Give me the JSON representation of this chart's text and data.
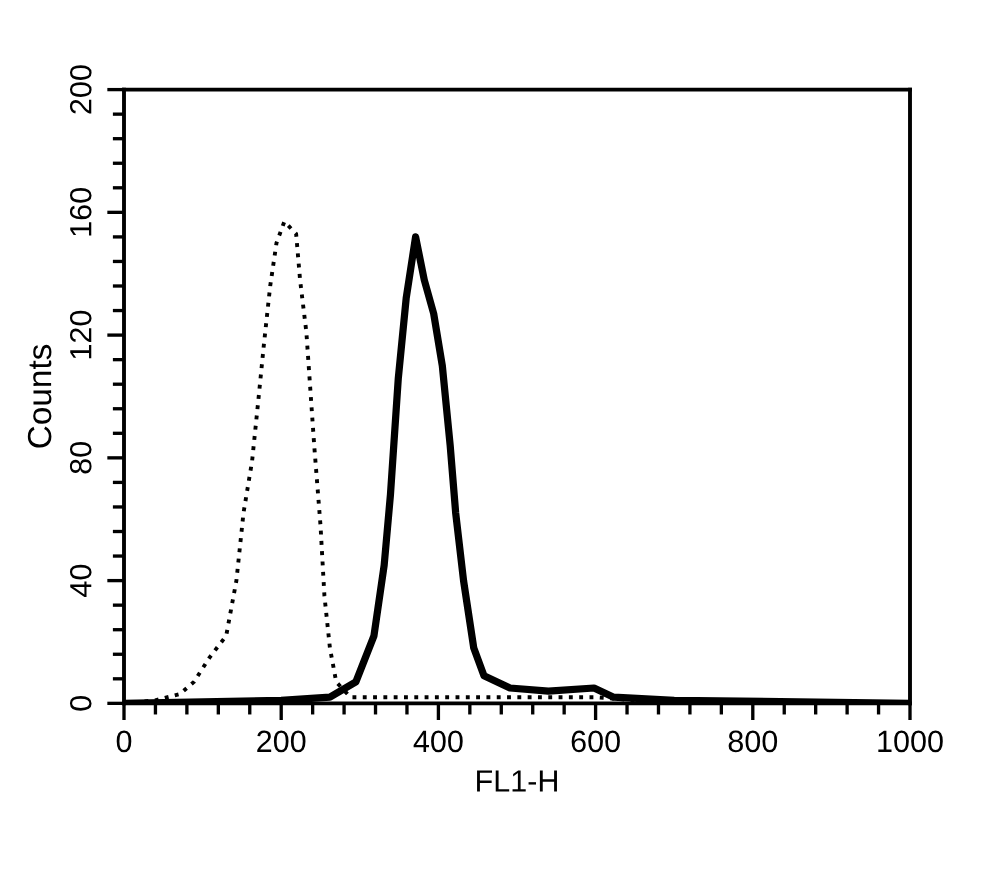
{
  "chart_data": {
    "type": "line",
    "xlabel": "FL1-H",
    "ylabel": "Counts",
    "xlim": [
      0,
      1000
    ],
    "ylim": [
      0,
      200
    ],
    "xticks": [
      0,
      {
        "value": 40,
        "label": null
      },
      {
        "value": 80,
        "label": null
      },
      {
        "value": 120,
        "label": null
      },
      {
        "value": 160,
        "label": null
      },
      200,
      {
        "value": 240,
        "label": null
      },
      {
        "value": 280,
        "label": null
      },
      {
        "value": 320,
        "label": null
      },
      {
        "value": 360,
        "label": null
      },
      400,
      {
        "value": 440,
        "label": null
      },
      {
        "value": 480,
        "label": null
      },
      {
        "value": 520,
        "label": null
      },
      {
        "value": 560,
        "label": null
      },
      600,
      {
        "value": 640,
        "label": null
      },
      {
        "value": 680,
        "label": null
      },
      {
        "value": 720,
        "label": null
      },
      {
        "value": 760,
        "label": null
      },
      800,
      {
        "value": 840,
        "label": null
      },
      {
        "value": 880,
        "label": null
      },
      {
        "value": 920,
        "label": null
      },
      {
        "value": 960,
        "label": null
      },
      1000
    ],
    "yticks": [
      0,
      {
        "value": 8,
        "label": null
      },
      {
        "value": 16,
        "label": null
      },
      {
        "value": 24,
        "label": null
      },
      {
        "value": 32,
        "label": null
      },
      40,
      {
        "value": 48,
        "label": null
      },
      {
        "value": 56,
        "label": null
      },
      {
        "value": 64,
        "label": null
      },
      {
        "value": 72,
        "label": null
      },
      80,
      {
        "value": 88,
        "label": null
      },
      {
        "value": 96,
        "label": null
      },
      {
        "value": 104,
        "label": null
      },
      {
        "value": 112,
        "label": null
      },
      120,
      {
        "value": 128,
        "label": null
      },
      {
        "value": 136,
        "label": null
      },
      {
        "value": 144,
        "label": null
      },
      {
        "value": 152,
        "label": null
      },
      160,
      {
        "value": 168,
        "label": null
      },
      {
        "value": 176,
        "label": null
      },
      {
        "value": 184,
        "label": null
      },
      {
        "value": 192,
        "label": null
      },
      200
    ],
    "grid": false,
    "legend": false,
    "marker": "none",
    "series": [
      {
        "color": "#000000",
        "line_style": "dotted",
        "x": [
          0,
          40,
          71,
          89,
          109,
          130,
          143,
          152,
          163,
          171,
          178,
          186,
          194,
          204,
          219,
          224,
          232,
          242,
          250,
          255,
          262,
          270,
          288,
          400,
          600,
          700
        ],
        "values": [
          0,
          1,
          3,
          7,
          15,
          22,
          40,
          62,
          79,
          99,
          117,
          136,
          150,
          157,
          153,
          138,
          121,
          84,
          58,
          35,
          18,
          7,
          2,
          2,
          2,
          0
        ]
      },
      {
        "color": "#000000",
        "line_style": "solid",
        "x": [
          0,
          200,
          262,
          295,
          318,
          331,
          339,
          349,
          359,
          371,
          382,
          394,
          405,
          415,
          422,
          432,
          445,
          458,
          491,
          540,
          598,
          623,
          700,
          1000
        ],
        "values": [
          0,
          1,
          2,
          7,
          22,
          45,
          68,
          106,
          132,
          152,
          138,
          127,
          110,
          84,
          62,
          40,
          18,
          9,
          5,
          4,
          5,
          2,
          1,
          0
        ]
      }
    ]
  }
}
